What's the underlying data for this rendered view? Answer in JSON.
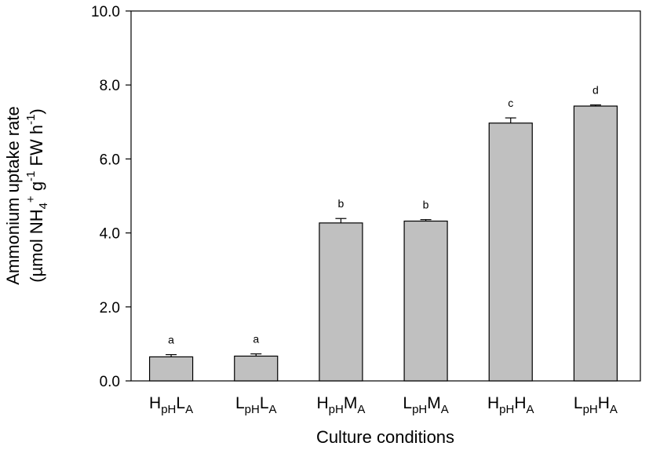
{
  "chart_data": {
    "type": "bar",
    "categories": [
      {
        "main1": "H",
        "sub1": "pH",
        "main2": "L",
        "sub2": "A"
      },
      {
        "main1": "L",
        "sub1": "pH",
        "main2": "L",
        "sub2": "A"
      },
      {
        "main1": "H",
        "sub1": "pH",
        "main2": "M",
        "sub2": "A"
      },
      {
        "main1": "L",
        "sub1": "pH",
        "main2": "M",
        "sub2": "A"
      },
      {
        "main1": "H",
        "sub1": "pH",
        "main2": "H",
        "sub2": "A"
      },
      {
        "main1": "L",
        "sub1": "pH",
        "main2": "H",
        "sub2": "A"
      }
    ],
    "values": [
      0.65,
      0.67,
      4.27,
      4.32,
      6.97,
      7.43
    ],
    "errors": [
      0.06,
      0.06,
      0.12,
      0.04,
      0.14,
      0.03
    ],
    "significance": [
      "a",
      "a",
      "b",
      "b",
      "c",
      "d"
    ],
    "xlabel": "Culture conditions",
    "ylabel": {
      "line1": "Ammonium uptake rate",
      "line2_prefix": "(µmol NH",
      "line2_sub": "4",
      "line2_sup": "+",
      "line2_mid": " g",
      "line2_sup2": "-1",
      "line2_mid2": " FW h",
      "line2_sup3": "-1",
      "line2_suffix": ")"
    },
    "ylim": [
      0,
      10
    ],
    "yticks": [
      "0.0",
      "2.0",
      "4.0",
      "6.0",
      "8.0",
      "10.0"
    ],
    "bar_color": "#c0c0c0",
    "edge_color": "#000000",
    "grid": false
  }
}
